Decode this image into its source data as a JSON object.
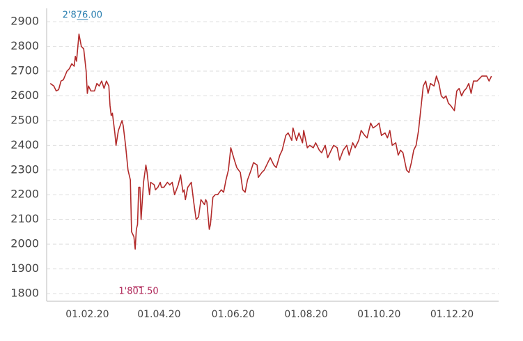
{
  "chart_data": {
    "type": "line",
    "x": [
      0,
      3,
      5,
      7,
      9,
      11,
      14,
      16,
      18,
      20,
      21,
      22,
      24,
      26,
      28,
      30,
      31,
      32,
      34,
      37,
      39,
      41,
      43,
      45,
      47,
      49,
      50,
      51,
      52,
      54,
      55,
      57,
      60,
      61,
      63,
      65,
      67,
      68,
      70,
      71,
      72,
      73,
      74,
      75,
      76,
      78,
      80,
      81,
      83,
      84,
      87,
      88,
      90,
      92,
      93,
      95,
      98,
      100,
      102,
      104,
      107,
      109,
      111,
      112,
      113,
      115,
      118,
      120,
      122,
      124,
      126,
      129,
      130,
      131,
      133,
      134,
      136,
      138,
      140,
      143,
      145,
      147,
      149,
      151,
      154,
      156,
      159,
      161,
      163,
      165,
      168,
      170,
      173,
      174,
      177,
      179,
      182,
      184,
      187,
      189,
      192,
      194,
      197,
      199,
      202,
      203,
      206,
      208,
      211,
      212,
      215,
      217,
      220,
      222,
      225,
      227,
      230,
      232,
      235,
      237,
      240,
      242,
      245,
      248,
      250,
      253,
      255,
      258,
      260,
      263,
      265,
      268,
      270,
      273,
      275,
      277,
      280,
      282,
      284,
      286,
      289,
      291,
      293,
      295,
      298,
      300,
      302,
      304,
      306,
      308,
      310,
      312,
      314,
      316,
      318,
      321,
      323,
      325,
      327,
      329,
      331,
      333,
      335,
      338,
      340,
      342,
      344,
      346,
      348,
      350,
      352,
      354,
      357,
      359,
      361,
      363,
      365,
      367,
      369
    ],
    "series": [
      {
        "color": "#b22a2a",
        "values": [
          2650,
          2640,
          2620,
          2625,
          2660,
          2665,
          2700,
          2710,
          2730,
          2720,
          2760,
          2740,
          2850,
          2800,
          2790,
          2700,
          2610,
          2640,
          2620,
          2620,
          2650,
          2640,
          2660,
          2630,
          2660,
          2640,
          2560,
          2520,
          2530,
          2450,
          2400,
          2460,
          2500,
          2480,
          2400,
          2300,
          2260,
          2050,
          2030,
          1980,
          2060,
          2080,
          2230,
          2230,
          2100,
          2250,
          2320,
          2290,
          2200,
          2250,
          2240,
          2220,
          2230,
          2250,
          2230,
          2230,
          2250,
          2240,
          2250,
          2200,
          2240,
          2280,
          2210,
          2220,
          2180,
          2230,
          2250,
          2170,
          2100,
          2110,
          2180,
          2160,
          2180,
          2170,
          2060,
          2080,
          2190,
          2200,
          2200,
          2220,
          2210,
          2260,
          2300,
          2390,
          2340,
          2310,
          2290,
          2220,
          2210,
          2260,
          2300,
          2330,
          2320,
          2270,
          2290,
          2300,
          2330,
          2350,
          2320,
          2310,
          2360,
          2380,
          2440,
          2450,
          2420,
          2470,
          2420,
          2450,
          2410,
          2460,
          2390,
          2400,
          2390,
          2410,
          2380,
          2370,
          2400,
          2350,
          2380,
          2400,
          2390,
          2340,
          2380,
          2400,
          2360,
          2410,
          2390,
          2420,
          2460,
          2440,
          2430,
          2490,
          2470,
          2480,
          2490,
          2440,
          2450,
          2430,
          2460,
          2400,
          2410,
          2360,
          2380,
          2370,
          2300,
          2290,
          2330,
          2380,
          2400,
          2460,
          2550,
          2640,
          2660,
          2610,
          2650,
          2640,
          2680,
          2650,
          2600,
          2590,
          2600,
          2570,
          2560,
          2540,
          2620,
          2630,
          2600,
          2620,
          2630,
          2650,
          2610,
          2660,
          2660,
          2670,
          2680,
          2680,
          2680,
          2660,
          2680
        ]
      }
    ],
    "annotations": [
      {
        "label": "2'876.00",
        "value": 2876,
        "color": "#2a7fb0"
      },
      {
        "label": "1'801.50",
        "value": 1801.5,
        "color": "#b0285a"
      }
    ],
    "xlim": [
      -3,
      375
    ],
    "xticks": [
      {
        "value": 31,
        "label": "01.02.20"
      },
      {
        "value": 91,
        "label": "01.04.20"
      },
      {
        "value": 153,
        "label": "01.06.20"
      },
      {
        "value": 214,
        "label": "01.08.20"
      },
      {
        "value": 275,
        "label": "01.10.20"
      },
      {
        "value": 336,
        "label": "01.12.20"
      }
    ],
    "ylim": [
      1769,
      2954
    ],
    "yticks": [
      1800,
      1900,
      2000,
      2100,
      2200,
      2300,
      2400,
      2500,
      2600,
      2700,
      2800,
      2900
    ],
    "grid": true
  }
}
